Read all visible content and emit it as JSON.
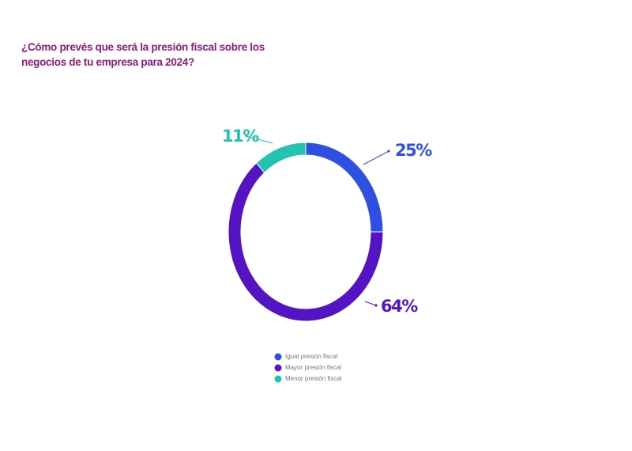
{
  "chart_data": {
    "type": "donut",
    "title": "¿Cómo prevés que será la presión fiscal sobre los negocios de tu empresa para 2024?",
    "categories": [
      "Igual presión fiscal",
      "Mayor presión fiscal",
      "Menor presión fiscal"
    ],
    "values": [
      25,
      64,
      11
    ],
    "value_labels": [
      "25%",
      "64%",
      "11%"
    ],
    "colors": [
      "#2f4fe3",
      "#5514c4",
      "#22c3b0"
    ]
  }
}
